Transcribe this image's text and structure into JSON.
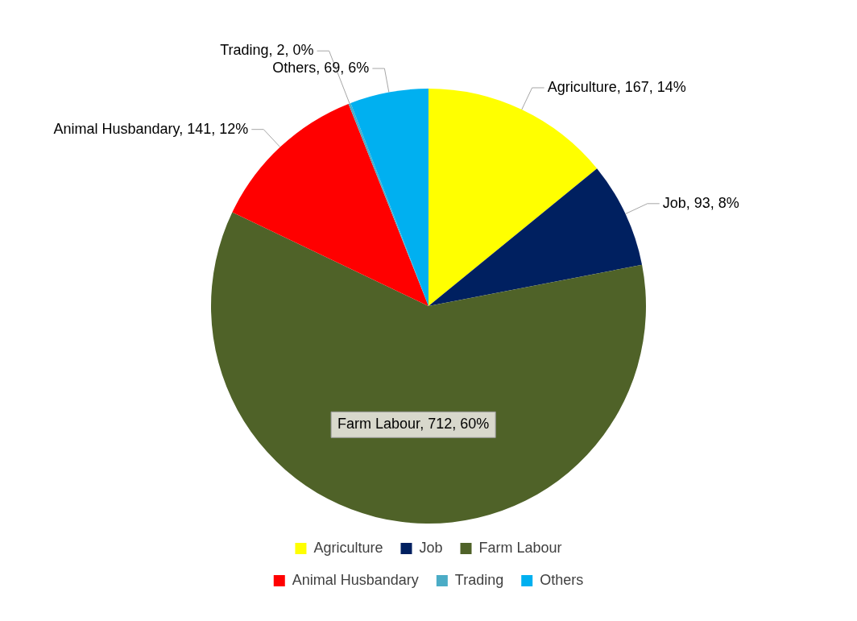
{
  "chart_data": {
    "type": "pie",
    "categories": [
      "Agriculture",
      "Job",
      "Farm Labour",
      "Animal Husbandary",
      "Trading",
      "Others"
    ],
    "values": [
      167,
      93,
      712,
      141,
      2,
      69
    ],
    "colors": [
      "#ffff00",
      "#002060",
      "#4f6228",
      "#ff0000",
      "#4bacc6",
      "#00b0f0"
    ],
    "value_labels": [
      "Agriculture, 167, 14%",
      "Job, 93, 8%",
      "Farm Labour, 712, 60%",
      "Animal Husbandary, 141, 12%",
      "Trading, 2, 0%",
      "Others, 69, 6%"
    ],
    "legend": "bottom"
  }
}
